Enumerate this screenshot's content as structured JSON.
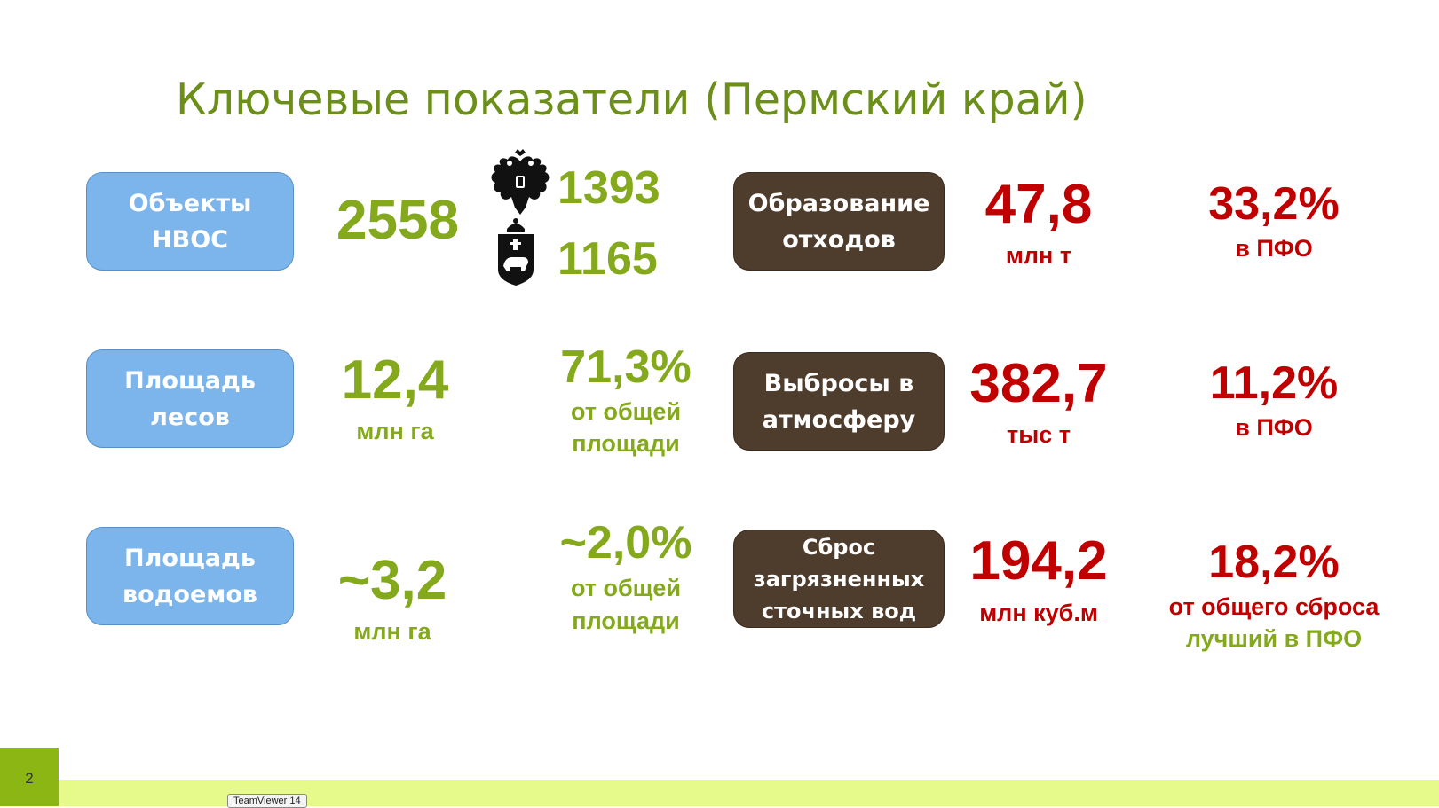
{
  "title": "Ключевые показатели (Пермский край)",
  "rows": [
    {
      "left_label_line1": "Объекты",
      "left_label_line2": "НВОС",
      "left_value": "2558",
      "federal_value": "1393",
      "regional_value": "1165",
      "right_label_line1": "Образование",
      "right_label_line2": "отходов",
      "right_value": "47,8",
      "right_unit": "млн т",
      "share_value": "33,2%",
      "share_note": "в ПФО"
    },
    {
      "left_label_line1": "Площадь",
      "left_label_line2": "лесов",
      "left_value": "12,4",
      "left_unit": "млн га",
      "pct_value": "71,3%",
      "pct_note_line1": "от общей",
      "pct_note_line2": "площади",
      "right_label_line1": "Выбросы в",
      "right_label_line2": "атмосферу",
      "right_value": "382,7",
      "right_unit": "тыс т",
      "share_value": "11,2%",
      "share_note": "в ПФО"
    },
    {
      "left_label_line1": "Площадь",
      "left_label_line2": "водоемов",
      "left_value": "~3,2",
      "left_unit": "млн га",
      "pct_value": "~2,0%",
      "pct_note_line1": "от общей",
      "pct_note_line2": "площади",
      "right_label_line1": "Сброс",
      "right_label_line2": "загрязненных",
      "right_label_line3": "сточных вод",
      "right_value": "194,2",
      "right_unit": "млн куб.м",
      "share_value": "18,2%",
      "share_note": "от общего сброса",
      "share_note2": "лучший в ПФО"
    }
  ],
  "colors": {
    "title": "#6c8f1a",
    "green": "#84a91c",
    "red": "#c00000",
    "blue_box": "#7cb5ec",
    "brown_box": "#4e3c2c",
    "bottom_bar": "#e6fa8c",
    "page_square": "#8bb613"
  },
  "icons": [
    "russia-coat-of-arms-icon",
    "perm-krai-coat-of-arms-icon"
  ],
  "footer": {
    "page_number": "2",
    "taskbar_label": "TeamViewer 14"
  }
}
